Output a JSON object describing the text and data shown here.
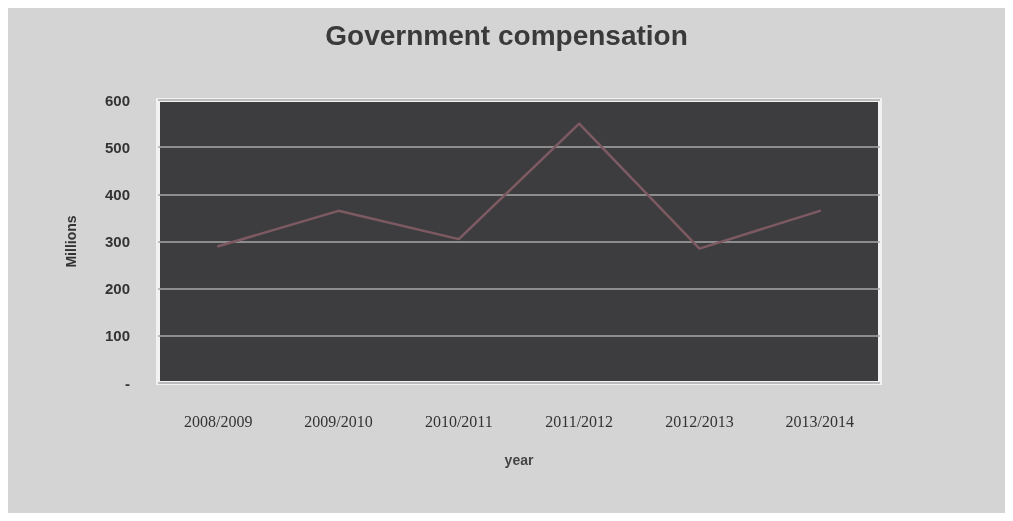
{
  "chart_data": {
    "type": "line",
    "title": "Government compensation",
    "xlabel": "year",
    "ylabel": "Millions",
    "categories": [
      "2008/2009",
      "2009/2010",
      "2010/2011",
      "2011/2012",
      "2012/2013",
      "2013/2014"
    ],
    "series": [
      {
        "color": "#7d5a62",
        "values": [
          290,
          365,
          305,
          550,
          285,
          365
        ]
      }
    ],
    "ylim": [
      0,
      600
    ],
    "yticks": [
      {
        "value": 0,
        "label": "-"
      },
      100,
      200,
      300,
      400,
      500,
      600
    ],
    "grid": "y",
    "marker": "none",
    "line_style": "solid"
  }
}
